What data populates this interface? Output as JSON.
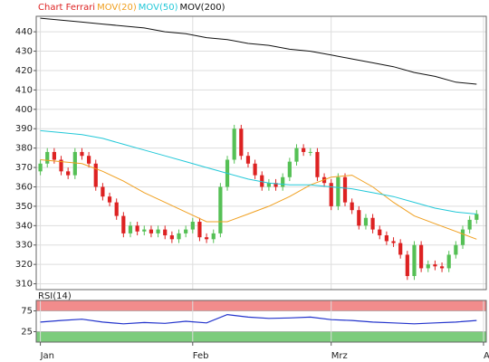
{
  "chart_data": [
    {
      "type": "candlestick",
      "series": [
        {
          "name": "Chart Ferrari",
          "color": "#dd2222",
          "up_color": "#55c055",
          "x": [
            0,
            1,
            2,
            3,
            4,
            5,
            6,
            7,
            8,
            9,
            10,
            11,
            12,
            13,
            14,
            15,
            16,
            17,
            18,
            19,
            20,
            21,
            22,
            23,
            24,
            25,
            26,
            27,
            28,
            29,
            30,
            31,
            32,
            33,
            34,
            35,
            36,
            37,
            38,
            39,
            40,
            41,
            42,
            43,
            44,
            45,
            46,
            47,
            48,
            49,
            50,
            51,
            52,
            53,
            54,
            55,
            56,
            57,
            58,
            59,
            60,
            61,
            62,
            63
          ],
          "open": [
            368,
            372,
            378,
            374,
            368,
            366,
            378,
            376,
            372,
            360,
            355,
            352,
            345,
            336,
            340,
            337,
            338,
            336,
            338,
            335,
            333,
            336,
            338,
            342,
            334,
            333,
            336,
            360,
            374,
            390,
            376,
            372,
            366,
            360,
            362,
            360,
            365,
            373,
            380,
            378,
            378,
            365,
            362,
            350,
            365,
            352,
            348,
            340,
            344,
            338,
            335,
            332,
            331,
            325,
            314,
            330,
            318,
            320,
            319,
            318,
            325,
            330,
            338,
            343
          ],
          "high": [
            374,
            380,
            380,
            376,
            370,
            380,
            380,
            378,
            374,
            362,
            357,
            354,
            347,
            342,
            342,
            340,
            340,
            340,
            340,
            337,
            338,
            340,
            344,
            344,
            336,
            338,
            362,
            376,
            392,
            392,
            378,
            374,
            368,
            364,
            364,
            367,
            375,
            382,
            382,
            380,
            380,
            367,
            364,
            367,
            367,
            354,
            350,
            346,
            346,
            340,
            337,
            334,
            333,
            327,
            332,
            332,
            322,
            322,
            321,
            327,
            332,
            340,
            345,
            348
          ],
          "low": [
            366,
            370,
            372,
            366,
            364,
            364,
            374,
            370,
            358,
            353,
            350,
            343,
            334,
            334,
            335,
            335,
            334,
            334,
            333,
            331,
            331,
            334,
            336,
            332,
            331,
            331,
            334,
            358,
            372,
            374,
            370,
            364,
            358,
            358,
            358,
            358,
            363,
            371,
            376,
            376,
            363,
            360,
            348,
            348,
            350,
            346,
            338,
            338,
            336,
            333,
            330,
            329,
            323,
            312,
            312,
            316,
            316,
            317,
            316,
            316,
            323,
            328,
            336,
            341
          ],
          "close": [
            372,
            378,
            374,
            368,
            366,
            378,
            376,
            372,
            360,
            355,
            352,
            345,
            336,
            340,
            337,
            338,
            336,
            338,
            335,
            333,
            336,
            338,
            342,
            334,
            333,
            336,
            360,
            374,
            390,
            376,
            372,
            366,
            360,
            362,
            360,
            365,
            373,
            380,
            378,
            378,
            365,
            362,
            350,
            365,
            352,
            348,
            340,
            344,
            338,
            335,
            332,
            331,
            325,
            314,
            330,
            318,
            320,
            319,
            318,
            325,
            330,
            338,
            343,
            346
          ]
        },
        {
          "name": "MOV(20)",
          "color": "#f0a020",
          "x": [
            0,
            3,
            6,
            9,
            12,
            15,
            18,
            21,
            24,
            27,
            30,
            33,
            36,
            39,
            42,
            45,
            48,
            51,
            54,
            57,
            60,
            63
          ],
          "values": [
            374,
            373,
            372,
            368,
            363,
            357,
            352,
            347,
            342,
            342,
            346,
            350,
            355,
            361,
            365,
            366,
            360,
            352,
            345,
            341,
            337,
            333
          ]
        },
        {
          "name": "MOV(50)",
          "color": "#22c8d8",
          "x": [
            0,
            3,
            6,
            9,
            12,
            15,
            18,
            21,
            24,
            27,
            30,
            33,
            36,
            39,
            42,
            45,
            48,
            51,
            54,
            57,
            60,
            63
          ],
          "values": [
            389,
            388,
            387,
            385,
            382,
            379,
            376,
            373,
            370,
            367,
            364,
            362,
            361,
            361,
            360,
            359,
            357,
            355,
            352,
            349,
            347,
            346
          ]
        },
        {
          "name": "MOV(200)",
          "color": "#111111",
          "x": [
            0,
            3,
            6,
            9,
            12,
            15,
            18,
            21,
            24,
            27,
            30,
            33,
            36,
            39,
            42,
            45,
            48,
            51,
            54,
            57,
            60,
            63
          ],
          "values": [
            447,
            446,
            445,
            444,
            443,
            442,
            440,
            439,
            437,
            436,
            434,
            433,
            431,
            430,
            428,
            426,
            424,
            422,
            419,
            417,
            414,
            413
          ]
        }
      ],
      "xlim": [
        -0.6,
        64.4
      ],
      "ylim": [
        307,
        448
      ],
      "yticks": [
        310,
        320,
        330,
        340,
        350,
        360,
        370,
        380,
        390,
        400,
        410,
        420,
        430,
        440
      ],
      "grid": true
    },
    {
      "type": "line",
      "title": "RSI(14)",
      "series": [
        {
          "color": "#2233cc",
          "x": [
            0,
            3,
            6,
            9,
            12,
            15,
            18,
            21,
            24,
            27,
            30,
            33,
            36,
            39,
            42,
            45,
            48,
            51,
            54,
            57,
            60,
            63
          ],
          "values": [
            48,
            52,
            55,
            48,
            44,
            47,
            45,
            50,
            46,
            66,
            60,
            57,
            58,
            60,
            54,
            52,
            48,
            46,
            44,
            46,
            48,
            52
          ]
        }
      ],
      "bands": [
        {
          "range": [
            75,
            100
          ],
          "color": "#f28c8c"
        },
        {
          "range": [
            0,
            25
          ],
          "color": "#7ccc7c"
        }
      ],
      "xlim": [
        -0.6,
        64.4
      ],
      "ylim": [
        0,
        100
      ],
      "yticks": [
        25,
        75
      ],
      "xticks": [
        {
          "value": 0,
          "label": "Jan"
        },
        {
          "value": 22,
          "label": "Feb"
        },
        {
          "value": 42,
          "label": "Mrz"
        },
        {
          "value": 64,
          "label": "A"
        }
      ]
    }
  ]
}
